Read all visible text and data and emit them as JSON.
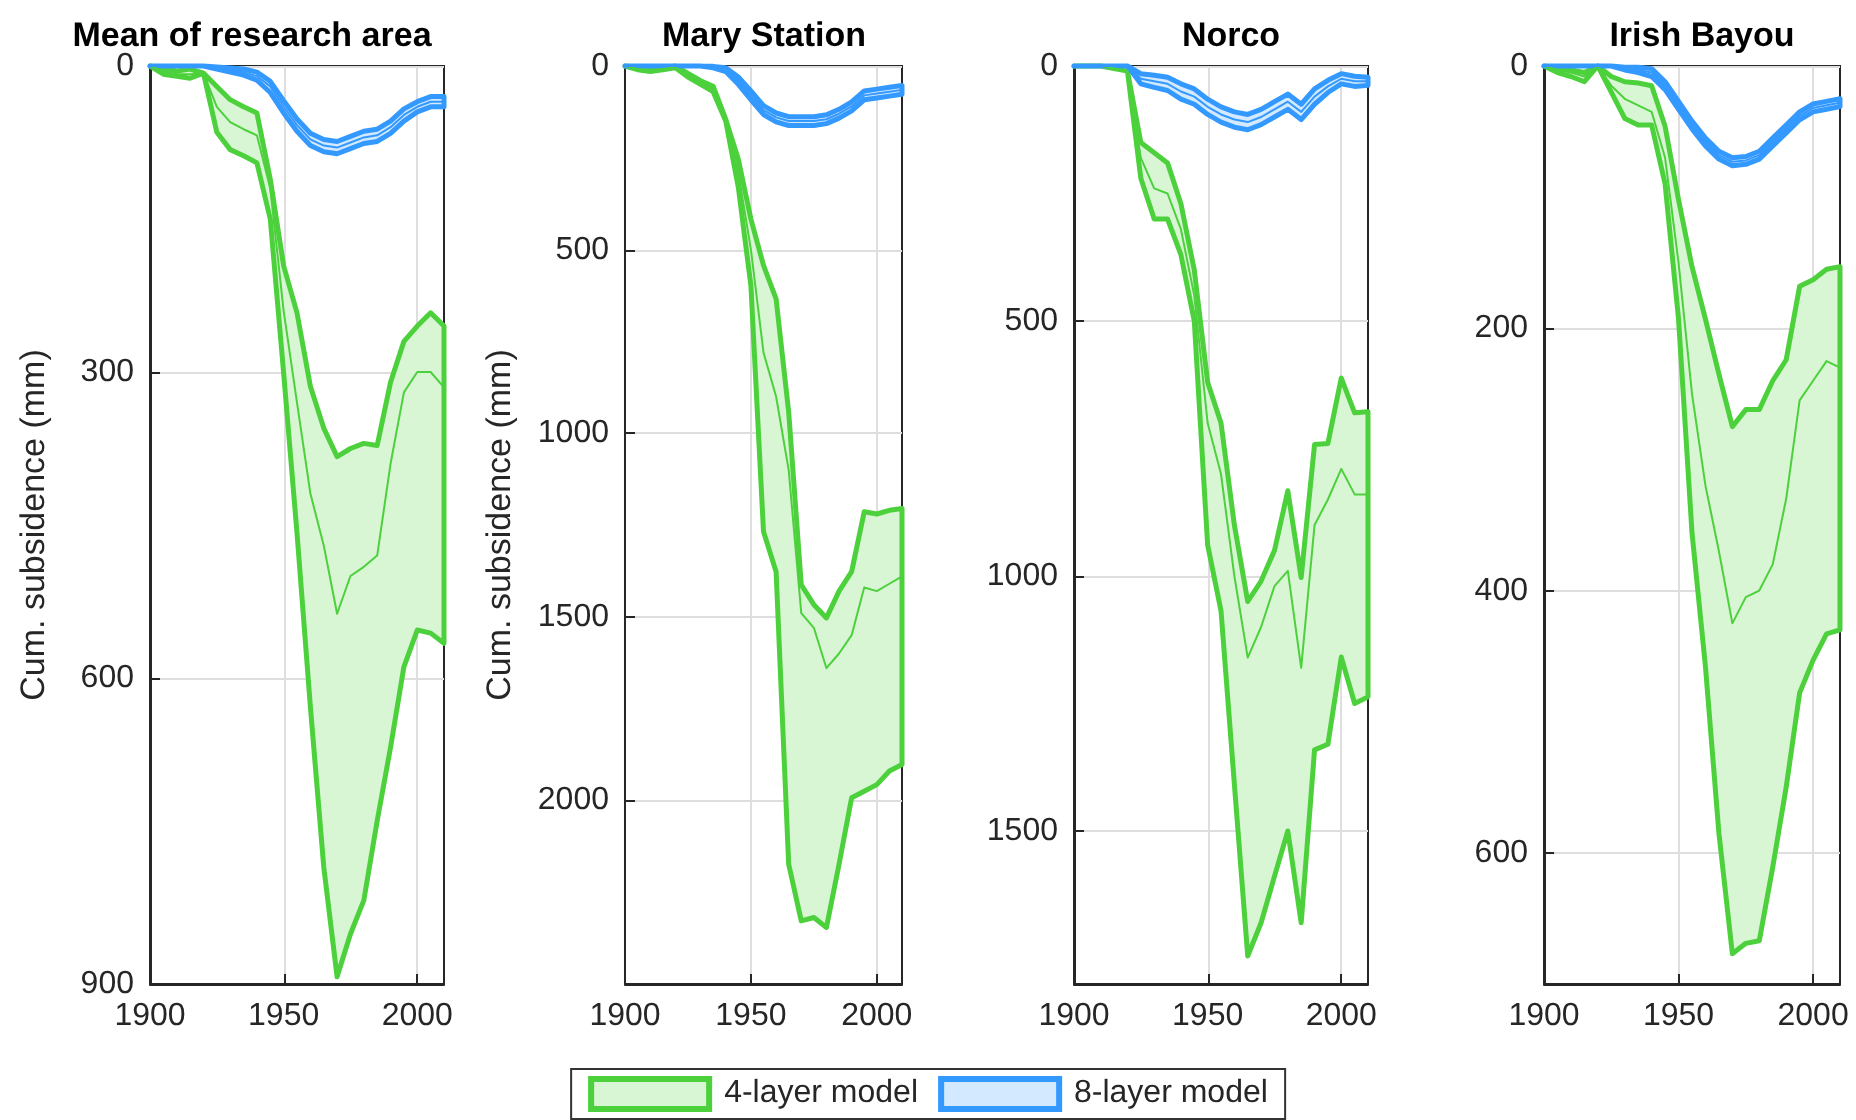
{
  "chart_data": [
    {
      "type": "line",
      "title": "Mean of research area",
      "ylabel": "Cum. subsidence (mm)",
      "x": [
        1900,
        1905,
        1910,
        1915,
        1920,
        1925,
        1930,
        1935,
        1940,
        1945,
        1950,
        1955,
        1960,
        1965,
        1970,
        1975,
        1980,
        1985,
        1990,
        1995,
        2000,
        2005,
        2010
      ],
      "xlim": [
        1900,
        2010
      ],
      "xticks": [
        1900,
        1950,
        2000
      ],
      "ylim": [
        900,
        0
      ],
      "yticks": [
        0,
        300,
        600,
        900
      ],
      "grid": true,
      "legend": "bottom",
      "series": [
        {
          "name": "4-layer model",
          "color": "#4cd13c",
          "values": [
            0,
            5,
            8,
            8,
            7,
            40,
            55,
            62,
            68,
            120,
            240,
            330,
            419,
            470,
            537,
            500,
            491,
            480,
            390,
            320,
            300,
            300,
            315
          ],
          "lower": [
            0,
            2,
            5,
            3,
            7,
            20,
            33,
            40,
            46,
            111,
            196,
            242,
            314,
            355,
            383,
            375,
            370,
            372,
            310,
            270,
            255,
            242,
            255
          ],
          "upper": [
            0,
            8,
            10,
            12,
            7,
            65,
            82,
            88,
            95,
            150,
            301,
            458,
            628,
            785,
            893,
            851,
            818,
            740,
            668,
            589,
            553,
            556,
            566
          ]
        },
        {
          "name": "8-layer model",
          "color": "#3399ff",
          "values": [
            0,
            0,
            0,
            0,
            0,
            2,
            4,
            6,
            10,
            20,
            40,
            58,
            72,
            78,
            80,
            75,
            70,
            68,
            60,
            48,
            40,
            35,
            35
          ],
          "lower": [
            0,
            0,
            0,
            0,
            0,
            1,
            2,
            3,
            6,
            15,
            34,
            52,
            66,
            72,
            74,
            69,
            64,
            62,
            54,
            42,
            35,
            30,
            30
          ],
          "upper": [
            0,
            0,
            0,
            0,
            0,
            3,
            6,
            9,
            14,
            26,
            46,
            64,
            78,
            84,
            86,
            81,
            76,
            74,
            66,
            54,
            45,
            40,
            40
          ]
        }
      ]
    },
    {
      "type": "line",
      "title": "Mary Station",
      "ylabel": "Cum. subsidence (mm)",
      "x": [
        1900,
        1905,
        1910,
        1915,
        1920,
        1925,
        1930,
        1935,
        1940,
        1945,
        1950,
        1955,
        1960,
        1965,
        1970,
        1975,
        1980,
        1985,
        1990,
        1995,
        2000,
        2005,
        2010
      ],
      "xlim": [
        1900,
        2010
      ],
      "xticks": [
        1900,
        1950,
        2000
      ],
      "ylim": [
        2500,
        0
      ],
      "yticks": [
        0,
        500,
        1000,
        1500,
        2000
      ],
      "grid": true,
      "legend": "bottom",
      "series": [
        {
          "name": "4-layer model",
          "color": "#4cd13c",
          "values": [
            0,
            8,
            12,
            8,
            3,
            25,
            45,
            62,
            148,
            290,
            500,
            780,
            900,
            1100,
            1490,
            1530,
            1640,
            1600,
            1550,
            1420,
            1430,
            1410,
            1390
          ],
          "lower": [
            0,
            5,
            10,
            5,
            0,
            20,
            40,
            55,
            145,
            254,
            417,
            543,
            634,
            942,
            1413,
            1467,
            1503,
            1430,
            1377,
            1214,
            1220,
            1210,
            1205
          ],
          "upper": [
            0,
            10,
            15,
            10,
            5,
            30,
            50,
            70,
            150,
            330,
            598,
            1268,
            1377,
            2174,
            2328,
            2319,
            2346,
            2174,
            1993,
            1975,
            1957,
            1920,
            1902
          ]
        },
        {
          "name": "8-layer model",
          "color": "#3399ff",
          "values": [
            0,
            0,
            0,
            0,
            0,
            0,
            0,
            3,
            10,
            40,
            80,
            120,
            140,
            150,
            150,
            150,
            145,
            130,
            110,
            80,
            75,
            70,
            65
          ],
          "lower": [
            0,
            0,
            0,
            0,
            0,
            0,
            0,
            1,
            5,
            30,
            68,
            108,
            128,
            138,
            138,
            138,
            133,
            118,
            98,
            68,
            63,
            58,
            53
          ],
          "upper": [
            0,
            0,
            0,
            0,
            0,
            0,
            0,
            5,
            15,
            50,
            92,
            132,
            152,
            162,
            162,
            162,
            157,
            142,
            122,
            92,
            87,
            82,
            77
          ]
        }
      ]
    },
    {
      "type": "line",
      "title": "Norco",
      "x": [
        1900,
        1905,
        1910,
        1915,
        1920,
        1925,
        1930,
        1935,
        1940,
        1945,
        1950,
        1955,
        1960,
        1965,
        1970,
        1975,
        1980,
        1985,
        1990,
        1995,
        2000,
        2005,
        2010
      ],
      "xlim": [
        1900,
        2010
      ],
      "xticks": [
        1900,
        1950,
        2000
      ],
      "ylim": [
        1800,
        0
      ],
      "yticks": [
        0,
        500,
        1000,
        1500
      ],
      "grid": true,
      "legend": "bottom",
      "series": [
        {
          "name": "4-layer model",
          "color": "#4cd13c",
          "values": [
            0,
            0,
            0,
            5,
            10,
            180,
            240,
            250,
            320,
            450,
            700,
            800,
            1000,
            1160,
            1100,
            1020,
            990,
            1180,
            900,
            850,
            790,
            840,
            840
          ],
          "lower": [
            0,
            0,
            0,
            5,
            10,
            150,
            170,
            190,
            270,
            400,
            620,
            700,
            900,
            1050,
            1010,
            950,
            833,
            1003,
            742,
            740,
            612,
            680,
            678
          ],
          "upper": [
            0,
            0,
            0,
            5,
            10,
            220,
            300,
            300,
            370,
            500,
            939,
            1068,
            1408,
            1745,
            1680,
            1589,
            1500,
            1680,
            1341,
            1330,
            1159,
            1250,
            1237
          ]
        },
        {
          "name": "8-layer model",
          "color": "#3399ff",
          "values": [
            0,
            0,
            0,
            0,
            0,
            25,
            30,
            35,
            50,
            60,
            80,
            95,
            105,
            110,
            100,
            85,
            70,
            90,
            60,
            40,
            25,
            30,
            30
          ],
          "lower": [
            0,
            0,
            0,
            0,
            0,
            15,
            18,
            22,
            35,
            45,
            65,
            80,
            90,
            95,
            85,
            70,
            55,
            75,
            45,
            28,
            15,
            20,
            22
          ],
          "upper": [
            0,
            0,
            0,
            0,
            0,
            35,
            42,
            48,
            65,
            75,
            95,
            110,
            120,
            125,
            115,
            100,
            85,
            105,
            75,
            52,
            35,
            40,
            38
          ]
        }
      ]
    },
    {
      "type": "line",
      "title": "Irish Bayou",
      "x": [
        1900,
        1905,
        1910,
        1915,
        1920,
        1925,
        1930,
        1935,
        1940,
        1945,
        1950,
        1955,
        1960,
        1965,
        1970,
        1975,
        1980,
        1985,
        1990,
        1995,
        2000,
        2005,
        2010
      ],
      "xlim": [
        1900,
        2010
      ],
      "xticks": [
        1900,
        1950,
        2000
      ],
      "ylim": [
        700,
        0
      ],
      "yticks": [
        0,
        200,
        400,
        600
      ],
      "grid": true,
      "legend": "bottom",
      "series": [
        {
          "name": "4-layer model",
          "color": "#4cd13c",
          "values": [
            0,
            3,
            5,
            8,
            0,
            15,
            25,
            30,
            35,
            70,
            150,
            250,
            320,
            370,
            425,
            405,
            400,
            380,
            330,
            255,
            240,
            225,
            230
          ],
          "lower": [
            0,
            2,
            3,
            5,
            0,
            8,
            12,
            13,
            15,
            46,
            102,
            153,
            193,
            235,
            275,
            262,
            262,
            240,
            224,
            168,
            163,
            155,
            153
          ],
          "upper": [
            0,
            5,
            8,
            12,
            0,
            20,
            40,
            45,
            45,
            90,
            193,
            356,
            458,
            585,
            677,
            669,
            667,
            611,
            550,
            478,
            453,
            433,
            430
          ]
        },
        {
          "name": "8-layer model",
          "color": "#3399ff",
          "values": [
            0,
            0,
            0,
            0,
            0,
            0,
            2,
            3,
            5,
            15,
            30,
            45,
            58,
            68,
            73,
            72,
            68,
            58,
            48,
            38,
            32,
            30,
            28
          ],
          "lower": [
            0,
            0,
            0,
            0,
            0,
            0,
            1,
            1,
            2,
            12,
            27,
            42,
            55,
            65,
            70,
            69,
            65,
            55,
            45,
            35,
            29,
            27,
            25
          ],
          "upper": [
            0,
            0,
            0,
            0,
            0,
            0,
            3,
            5,
            8,
            18,
            33,
            48,
            61,
            71,
            76,
            75,
            71,
            61,
            51,
            41,
            35,
            33,
            31
          ]
        }
      ]
    }
  ]
}
